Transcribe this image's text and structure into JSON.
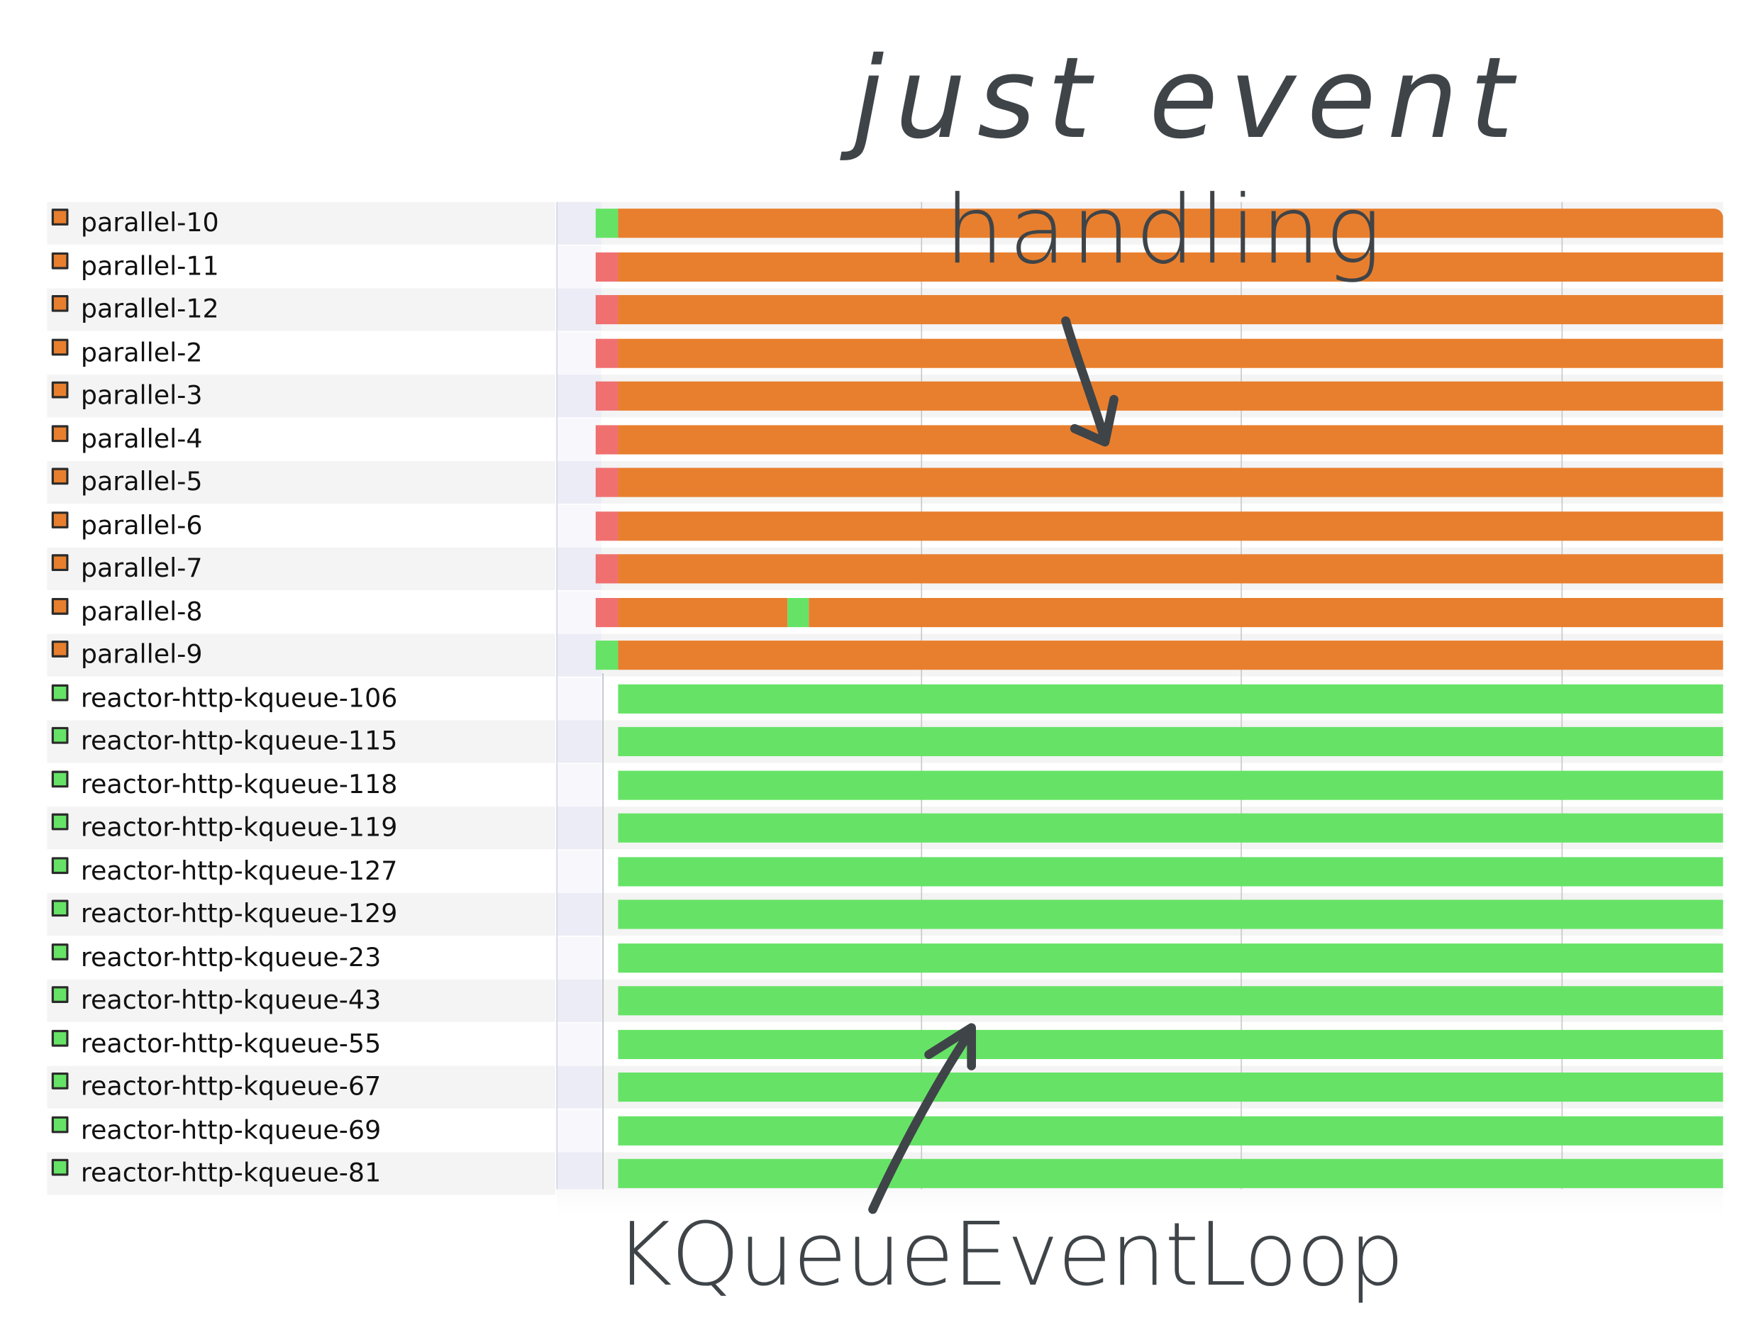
{
  "threads": [
    {
      "name": "parallel-10",
      "type": "parallel",
      "segments": [
        {
          "state": "running",
          "start": 0.0,
          "end": 0.02
        },
        {
          "state": "waiting",
          "start": 0.02,
          "end": 1.0
        }
      ]
    },
    {
      "name": "parallel-11",
      "type": "parallel",
      "segments": [
        {
          "state": "blocked",
          "start": 0.0,
          "end": 0.02
        },
        {
          "state": "waiting",
          "start": 0.02,
          "end": 1.0
        }
      ]
    },
    {
      "name": "parallel-12",
      "type": "parallel",
      "segments": [
        {
          "state": "blocked",
          "start": 0.0,
          "end": 0.02
        },
        {
          "state": "waiting",
          "start": 0.02,
          "end": 1.0
        }
      ]
    },
    {
      "name": "parallel-2",
      "type": "parallel",
      "segments": [
        {
          "state": "blocked",
          "start": 0.0,
          "end": 0.02
        },
        {
          "state": "waiting",
          "start": 0.02,
          "end": 1.0
        }
      ]
    },
    {
      "name": "parallel-3",
      "type": "parallel",
      "segments": [
        {
          "state": "blocked",
          "start": 0.0,
          "end": 0.02
        },
        {
          "state": "waiting",
          "start": 0.02,
          "end": 1.0
        }
      ]
    },
    {
      "name": "parallel-4",
      "type": "parallel",
      "segments": [
        {
          "state": "blocked",
          "start": 0.0,
          "end": 0.02
        },
        {
          "state": "waiting",
          "start": 0.02,
          "end": 1.0
        }
      ]
    },
    {
      "name": "parallel-5",
      "type": "parallel",
      "segments": [
        {
          "state": "blocked",
          "start": 0.0,
          "end": 0.02
        },
        {
          "state": "waiting",
          "start": 0.02,
          "end": 1.0
        }
      ]
    },
    {
      "name": "parallel-6",
      "type": "parallel",
      "segments": [
        {
          "state": "blocked",
          "start": 0.0,
          "end": 0.02
        },
        {
          "state": "waiting",
          "start": 0.02,
          "end": 1.0
        }
      ]
    },
    {
      "name": "parallel-7",
      "type": "parallel",
      "segments": [
        {
          "state": "blocked",
          "start": 0.0,
          "end": 0.02
        },
        {
          "state": "waiting",
          "start": 0.02,
          "end": 1.0
        }
      ]
    },
    {
      "name": "parallel-8",
      "type": "parallel",
      "segments": [
        {
          "state": "blocked",
          "start": 0.0,
          "end": 0.02
        },
        {
          "state": "waiting",
          "start": 0.02,
          "end": 0.17
        },
        {
          "state": "running",
          "start": 0.17,
          "end": 0.189
        },
        {
          "state": "waiting",
          "start": 0.189,
          "end": 1.0
        }
      ]
    },
    {
      "name": "parallel-9",
      "type": "parallel",
      "segments": [
        {
          "state": "running",
          "start": 0.0,
          "end": 0.02
        },
        {
          "state": "waiting",
          "start": 0.02,
          "end": 1.0
        }
      ]
    },
    {
      "name": "reactor-http-kqueue-106",
      "type": "reactor",
      "segments": [
        {
          "state": "running",
          "start": 0.02,
          "end": 1.0
        }
      ]
    },
    {
      "name": "reactor-http-kqueue-115",
      "type": "reactor",
      "segments": [
        {
          "state": "running",
          "start": 0.02,
          "end": 1.0
        }
      ]
    },
    {
      "name": "reactor-http-kqueue-118",
      "type": "reactor",
      "segments": [
        {
          "state": "running",
          "start": 0.02,
          "end": 1.0
        }
      ]
    },
    {
      "name": "reactor-http-kqueue-119",
      "type": "reactor",
      "segments": [
        {
          "state": "running",
          "start": 0.02,
          "end": 1.0
        }
      ]
    },
    {
      "name": "reactor-http-kqueue-127",
      "type": "reactor",
      "segments": [
        {
          "state": "running",
          "start": 0.02,
          "end": 1.0
        }
      ]
    },
    {
      "name": "reactor-http-kqueue-129",
      "type": "reactor",
      "segments": [
        {
          "state": "running",
          "start": 0.02,
          "end": 1.0
        }
      ]
    },
    {
      "name": "reactor-http-kqueue-23",
      "type": "reactor",
      "segments": [
        {
          "state": "running",
          "start": 0.02,
          "end": 1.0
        }
      ]
    },
    {
      "name": "reactor-http-kqueue-43",
      "type": "reactor",
      "segments": [
        {
          "state": "running",
          "start": 0.02,
          "end": 1.0
        }
      ]
    },
    {
      "name": "reactor-http-kqueue-55",
      "type": "reactor",
      "segments": [
        {
          "state": "running",
          "start": 0.02,
          "end": 1.0
        }
      ]
    },
    {
      "name": "reactor-http-kqueue-67",
      "type": "reactor",
      "segments": [
        {
          "state": "running",
          "start": 0.02,
          "end": 1.0
        }
      ]
    },
    {
      "name": "reactor-http-kqueue-69",
      "type": "reactor",
      "segments": [
        {
          "state": "running",
          "start": 0.02,
          "end": 1.0
        }
      ]
    },
    {
      "name": "reactor-http-kqueue-81",
      "type": "reactor",
      "segments": [
        {
          "state": "running",
          "start": 0.02,
          "end": 1.0
        }
      ]
    }
  ],
  "colors": {
    "parallel_icon": "#e87f2e",
    "reactor_icon": "#66e366",
    "running": "#66e366",
    "waiting": "#e87f2e",
    "blocked": "#f07070"
  },
  "annotations": {
    "top_line_1": "just event",
    "top_line_2": "handling",
    "bottom": "KQueueEventLoop"
  }
}
